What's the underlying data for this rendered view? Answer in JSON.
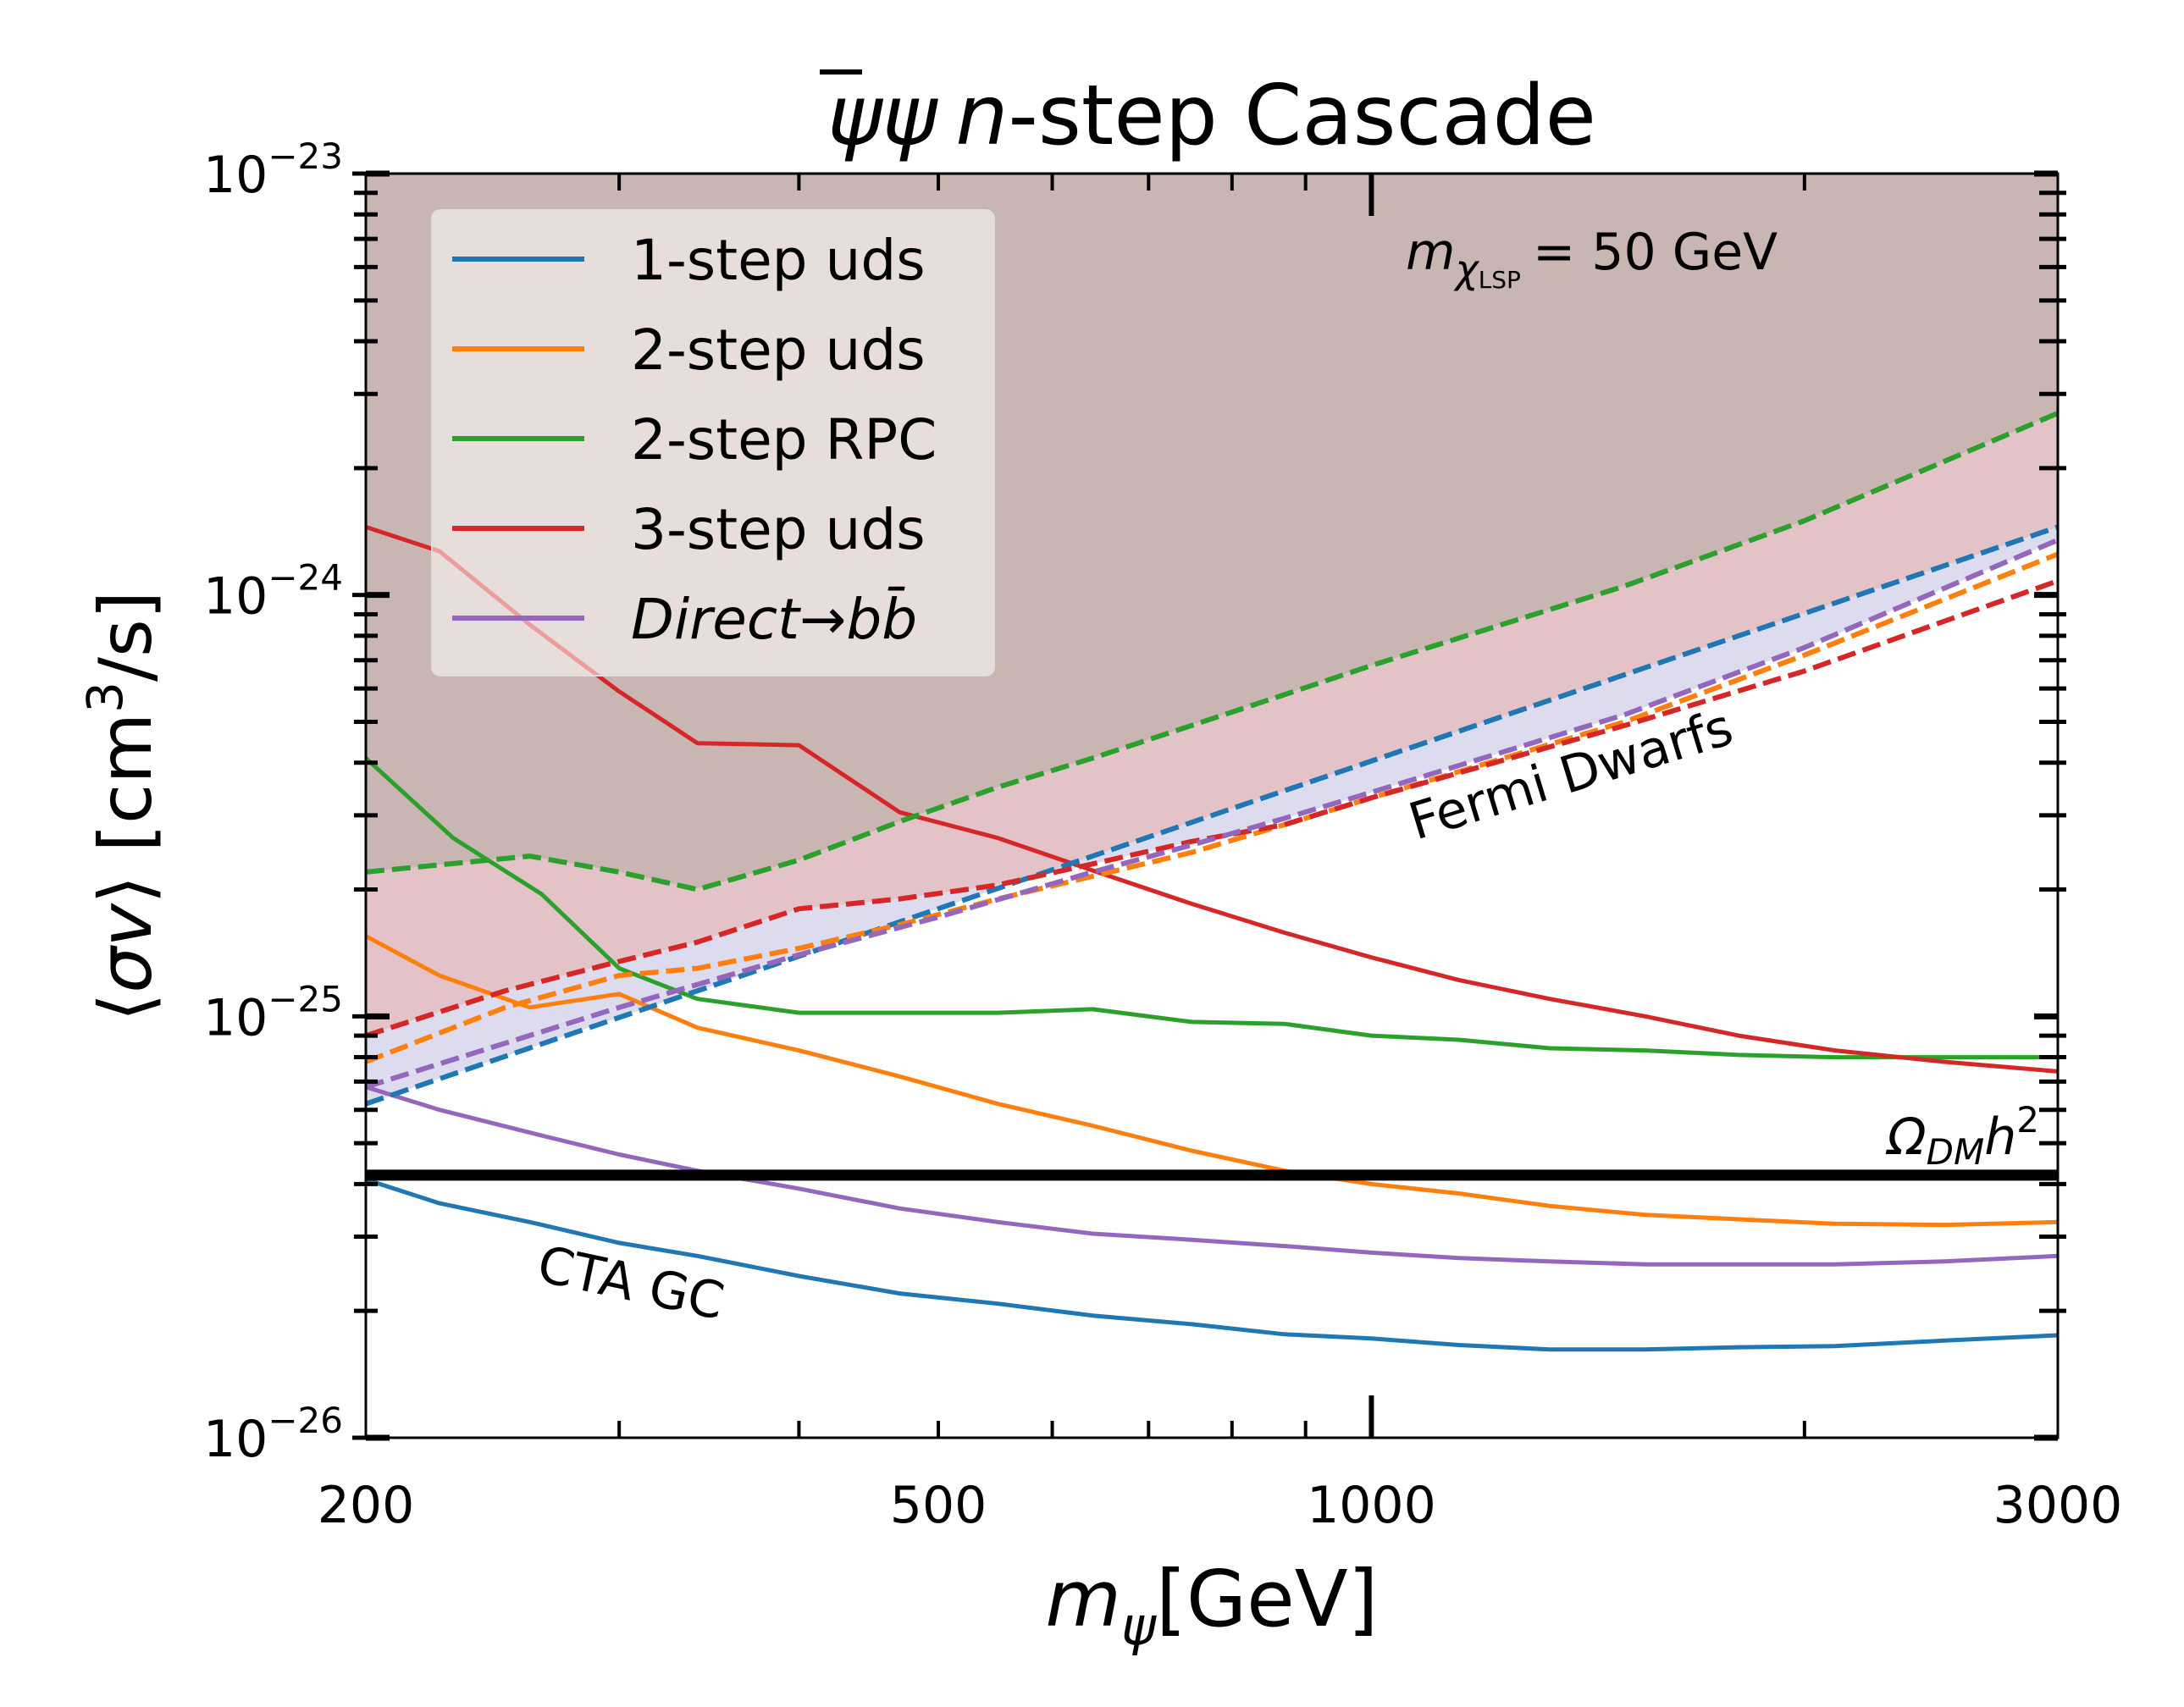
{
  "chart_data": {
    "type": "line",
    "title": "ψψ̄ n-step Cascade",
    "title_parts": {
      "psi": "ψ",
      "psibar": "ψ",
      "n": "n",
      "rest": "-step Cascade"
    },
    "xlabel": "mψ[GeV]",
    "xlabel_parts": {
      "m": "m",
      "sub": "ψ",
      "unit": "[GeV]"
    },
    "ylabel": "⟨σv⟩ [cm³/s]",
    "ylabel_parts": {
      "open": "⟨",
      "sv": "σv",
      "close": "⟩ [cm",
      "sup": "3",
      "unit": "/s]"
    },
    "xscale": "log",
    "yscale": "log",
    "xlim": [
      200,
      3000
    ],
    "ylim": [
      1e-26,
      1e-23
    ],
    "xticks": [
      {
        "value": 200,
        "label": "200"
      },
      {
        "value": 500,
        "label": "500"
      },
      {
        "value": 1000,
        "label": "1000"
      },
      {
        "value": 3000,
        "label": "3000"
      }
    ],
    "yticks": [
      {
        "value": 1e-26,
        "base": "10",
        "exp": "−26"
      },
      {
        "value": 1e-25,
        "base": "10",
        "exp": "−25"
      },
      {
        "value": 1e-24,
        "base": "10",
        "exp": "−24"
      },
      {
        "value": 1e-23,
        "base": "10",
        "exp": "−23"
      }
    ],
    "annotation_mass": {
      "m": "m",
      "chi": "χ",
      "lsp": "LSP",
      "eq": "= 50 GeV"
    },
    "annotation_fermi": "Fermi Dwarfs",
    "annotation_cta": "CTA GC",
    "relic_line": {
      "value": 4.2e-26,
      "label_omega": "Ω",
      "label_dm": "DM",
      "label_h": "h",
      "label_sup": "2"
    },
    "colors": {
      "blue": "#1f77b4",
      "orange": "#ff7f0e",
      "green": "#2ca02c",
      "red": "#d62728",
      "purple": "#9467bd",
      "excluded_fill": "#c9b6b2",
      "pink_fill": "#e3c3c8",
      "lavender_fill": "#dcdcee",
      "black": "#000000"
    },
    "legend": {
      "location": "upper-left",
      "entries": [
        {
          "label": "1-step uds",
          "color": "#1f77b4"
        },
        {
          "label": "2-step uds",
          "color": "#ff7f0e"
        },
        {
          "label": "2-step RPC",
          "color": "#2ca02c"
        },
        {
          "label": "3-step uds",
          "color": "#d62728"
        },
        {
          "label_direct": "Direct",
          "label_arrow": "→",
          "label_bb": "bb̄",
          "color": "#9467bd"
        }
      ]
    },
    "series": [
      {
        "name": "1-step uds",
        "dataset": "CTA GC",
        "style": "solid",
        "color": "#1f77b4",
        "x": [
          200,
          225,
          260,
          300,
          340,
          400,
          470,
          550,
          640,
          750,
          870,
          1000,
          1150,
          1330,
          1550,
          1800,
          2100,
          2500,
          3000
        ],
        "y": [
          4.1e-26,
          3.6e-26,
          3.25e-26,
          2.9e-26,
          2.7e-26,
          2.42e-26,
          2.2e-26,
          2.08e-26,
          1.95e-26,
          1.86e-26,
          1.76e-26,
          1.72e-26,
          1.66e-26,
          1.62e-26,
          1.62e-26,
          1.64e-26,
          1.65e-26,
          1.7e-26,
          1.75e-26
        ]
      },
      {
        "name": "2-step uds",
        "dataset": "CTA GC",
        "style": "solid",
        "color": "#ff7f0e",
        "x": [
          200,
          225,
          260,
          300,
          340,
          400,
          470,
          550,
          640,
          750,
          870,
          1000,
          1150,
          1330,
          1550,
          1800,
          2100,
          2500,
          3000
        ],
        "y": [
          1.55e-25,
          1.25e-25,
          1.05e-25,
          1.13e-25,
          9.4e-26,
          8.3e-26,
          7.2e-26,
          6.2e-26,
          5.5e-26,
          4.8e-26,
          4.3e-26,
          4e-26,
          3.8e-26,
          3.55e-26,
          3.38e-26,
          3.3e-26,
          3.22e-26,
          3.2e-26,
          3.25e-26
        ]
      },
      {
        "name": "2-step RPC",
        "dataset": "CTA GC",
        "style": "solid",
        "color": "#2ca02c",
        "x": [
          200,
          230,
          265,
          300,
          340,
          400,
          470,
          550,
          640,
          750,
          870,
          1000,
          1150,
          1330,
          1550,
          1800,
          2100,
          2500,
          3000
        ],
        "y": [
          4.1e-25,
          2.65e-25,
          1.95e-25,
          1.3e-25,
          1.1e-25,
          1.02e-25,
          1.02e-25,
          1.02e-25,
          1.04e-25,
          9.7e-26,
          9.6e-26,
          9e-26,
          8.8e-26,
          8.4e-26,
          8.3e-26,
          8.1e-26,
          8e-26,
          8e-26,
          8e-26
        ]
      },
      {
        "name": "3-step uds",
        "dataset": "CTA GC",
        "style": "solid",
        "color": "#d62728",
        "x": [
          200,
          225,
          260,
          300,
          340,
          400,
          470,
          550,
          640,
          750,
          870,
          1000,
          1150,
          1330,
          1550,
          1800,
          2100,
          2500,
          3000
        ],
        "y": [
          1.45e-24,
          1.27e-24,
          8.5e-25,
          5.9e-25,
          4.45e-25,
          4.4e-25,
          3.05e-25,
          2.65e-25,
          2.22e-25,
          1.85e-25,
          1.58e-25,
          1.38e-25,
          1.22e-25,
          1.1e-25,
          1e-25,
          9e-26,
          8.3e-26,
          7.8e-26,
          7.4e-26
        ]
      },
      {
        "name": "Direct→bb̄",
        "dataset": "CTA GC",
        "style": "solid",
        "color": "#9467bd",
        "x": [
          200,
          225,
          260,
          300,
          340,
          400,
          470,
          550,
          640,
          750,
          870,
          1000,
          1150,
          1330,
          1550,
          1800,
          2100,
          2500,
          3000
        ],
        "y": [
          6.8e-26,
          6e-26,
          5.3e-26,
          4.7e-26,
          4.3e-26,
          3.9e-26,
          3.5e-26,
          3.25e-26,
          3.05e-26,
          2.95e-26,
          2.85e-26,
          2.75e-26,
          2.67e-26,
          2.62e-26,
          2.58e-26,
          2.58e-26,
          2.58e-26,
          2.62e-26,
          2.7e-26
        ]
      },
      {
        "name": "1-step uds",
        "dataset": "Fermi Dwarfs",
        "style": "dashed",
        "color": "#1f77b4",
        "x": [
          200,
          3000
        ],
        "y": [
          6.2e-26,
          1.45e-24
        ]
      },
      {
        "name": "2-step uds",
        "dataset": "Fermi Dwarfs",
        "style": "dashed",
        "color": "#ff7f0e",
        "x": [
          200,
          250,
          300,
          340,
          400,
          470,
          550,
          640,
          750,
          870,
          1000,
          1500,
          2000,
          3000
        ],
        "y": [
          7.8e-26,
          1.05e-25,
          1.25e-25,
          1.3e-25,
          1.45e-25,
          1.65e-25,
          1.9e-25,
          2.15e-25,
          2.45e-25,
          2.85e-25,
          3.3e-25,
          5e-25,
          7.2e-25,
          1.25e-24
        ]
      },
      {
        "name": "2-step RPC",
        "dataset": "Fermi Dwarfs",
        "style": "dashed",
        "color": "#2ca02c",
        "x": [
          200,
          260,
          300,
          340,
          400,
          470,
          550,
          640,
          750,
          870,
          1000,
          1500,
          2000,
          3000
        ],
        "y": [
          2.2e-25,
          2.4e-25,
          2.2e-25,
          2e-25,
          2.35e-25,
          2.9e-25,
          3.5e-25,
          4.1e-25,
          4.9e-25,
          5.8e-25,
          6.8e-25,
          1.05e-24,
          1.5e-24,
          2.7e-24
        ]
      },
      {
        "name": "3-step uds",
        "dataset": "Fermi Dwarfs",
        "style": "dashed",
        "color": "#d62728",
        "x": [
          200,
          250,
          300,
          340,
          400,
          470,
          550,
          640,
          750,
          870,
          1000,
          1500,
          2000,
          3000
        ],
        "y": [
          9e-26,
          1.15e-25,
          1.35e-25,
          1.5e-25,
          1.8e-25,
          1.9e-25,
          2.05e-25,
          2.3e-25,
          2.6e-25,
          2.85e-25,
          3.3e-25,
          4.9e-25,
          6.6e-25,
          1.08e-24
        ]
      },
      {
        "name": "Direct→bb̄",
        "dataset": "Fermi Dwarfs",
        "style": "dashed",
        "color": "#9467bd",
        "x": [
          200,
          300,
          400,
          500,
          640,
          750,
          870,
          1000,
          1500,
          2000,
          3000
        ],
        "y": [
          6.8e-26,
          1.05e-25,
          1.4e-25,
          1.72e-25,
          2.2e-25,
          2.55e-25,
          2.95e-25,
          3.4e-25,
          5.2e-25,
          7.5e-25,
          1.35e-24
        ]
      }
    ]
  }
}
